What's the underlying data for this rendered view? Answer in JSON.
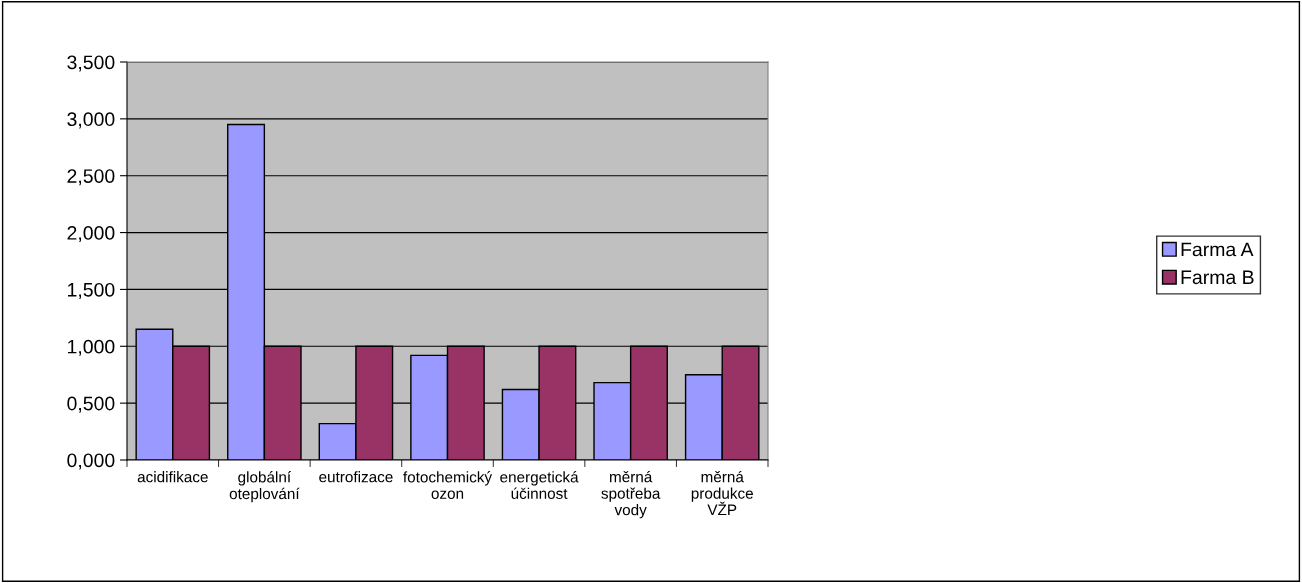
{
  "chart_data": {
    "type": "bar",
    "categories": [
      "acidifikace",
      "globální\noteplování",
      "eutrofizace",
      "fotochemický\nozon",
      "energetická\núčinnost",
      "měrná\nspotřeba\nvody",
      "měrná\nprodukce\nVŽP"
    ],
    "series": [
      {
        "name": "Farma A",
        "color": "#9999ff",
        "values": [
          1.15,
          2.95,
          0.32,
          0.92,
          0.62,
          0.68,
          0.75
        ]
      },
      {
        "name": "Farma B",
        "color": "#993366",
        "values": [
          1.0,
          1.0,
          1.0,
          1.0,
          1.0,
          1.0,
          1.0
        ]
      }
    ],
    "ylim": [
      0,
      3.5
    ],
    "yticks": [
      {
        "value": 0,
        "label": "0,000"
      },
      {
        "value": 0.5,
        "label": "0,500"
      },
      {
        "value": 1.0,
        "label": "1,000"
      },
      {
        "value": 1.5,
        "label": "1,500"
      },
      {
        "value": 2.0,
        "label": "2,000"
      },
      {
        "value": 2.5,
        "label": "2,500"
      },
      {
        "value": 3.0,
        "label": "3,000"
      },
      {
        "value": 3.5,
        "label": "3,500"
      }
    ],
    "grid": "y",
    "legend": "right"
  }
}
